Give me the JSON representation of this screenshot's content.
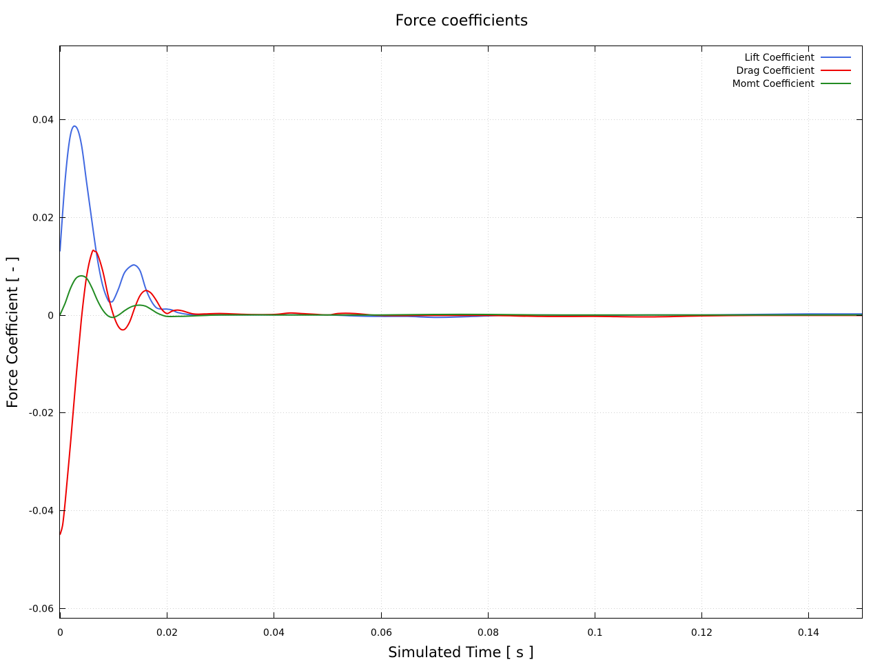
{
  "chart_data": {
    "type": "line",
    "title": "Force coefficients",
    "xlabel": "Simulated Time [ s ]",
    "ylabel": "Force Coefficient [ - ]",
    "xlim": [
      0,
      0.15
    ],
    "ylim": [
      -0.062,
      0.055
    ],
    "xticks": [
      0,
      0.02,
      0.04,
      0.06,
      0.08,
      0.1,
      0.12,
      0.14
    ],
    "xtick_labels": [
      "0",
      "0.02",
      "0.04",
      "0.06",
      "0.08",
      "0.1",
      "0.12",
      "0.14"
    ],
    "yticks": [
      -0.06,
      -0.04,
      -0.02,
      0,
      0.02,
      0.04
    ],
    "ytick_labels": [
      "-0.06",
      "-0.04",
      "-0.02",
      "0",
      "0.02",
      "0.04"
    ],
    "grid": true,
    "legend": "top-right",
    "series": [
      {
        "name": "Lift Coefficient",
        "color": "#4169e1",
        "x": [
          0,
          0.001,
          0.002,
          0.003,
          0.004,
          0.005,
          0.006,
          0.007,
          0.008,
          0.009,
          0.0095,
          0.01,
          0.011,
          0.012,
          0.013,
          0.014,
          0.015,
          0.016,
          0.017,
          0.018,
          0.019,
          0.02,
          0.021,
          0.022,
          0.024,
          0.026,
          0.03,
          0.04,
          0.05,
          0.055,
          0.06,
          0.065,
          0.07,
          0.075,
          0.08,
          0.09,
          0.1,
          0.11,
          0.12,
          0.13,
          0.14,
          0.15
        ],
        "y": [
          0.013,
          0.028,
          0.037,
          0.0385,
          0.035,
          0.027,
          0.019,
          0.0115,
          0.006,
          0.003,
          0.0027,
          0.003,
          0.0055,
          0.0085,
          0.0098,
          0.0102,
          0.009,
          0.0055,
          0.003,
          0.0015,
          0.0012,
          0.0012,
          0.001,
          0.0005,
          0.0001,
          0,
          0,
          0,
          0,
          -0.0002,
          -0.0003,
          -0.0003,
          -0.0005,
          -0.0004,
          -0.0002,
          0,
          -0.0001,
          0,
          0,
          0.0001,
          0.0002,
          0.0002
        ]
      },
      {
        "name": "Drag Coefficient",
        "color": "#ee0000",
        "x": [
          0,
          0.0005,
          0.001,
          0.002,
          0.003,
          0.004,
          0.005,
          0.006,
          0.0065,
          0.007,
          0.008,
          0.009,
          0.01,
          0.011,
          0.012,
          0.013,
          0.014,
          0.015,
          0.016,
          0.017,
          0.018,
          0.019,
          0.02,
          0.021,
          0.022,
          0.023,
          0.025,
          0.027,
          0.03,
          0.035,
          0.04,
          0.043,
          0.045,
          0.05,
          0.052,
          0.055,
          0.06,
          0.07,
          0.08,
          0.09,
          0.1,
          0.11,
          0.12,
          0.13,
          0.14,
          0.15
        ],
        "y": [
          -0.045,
          -0.043,
          -0.038,
          -0.026,
          -0.013,
          -0.001,
          0.008,
          0.0128,
          0.013,
          0.0125,
          0.009,
          0.004,
          0,
          -0.0025,
          -0.003,
          -0.0015,
          0.0015,
          0.004,
          0.005,
          0.0045,
          0.003,
          0.0012,
          0.0003,
          0.0008,
          0.001,
          0.0008,
          0.0002,
          0.0002,
          0.0003,
          0.0001,
          0.0001,
          0.0004,
          0.0003,
          0,
          0.0003,
          0.0003,
          -0.0001,
          -0.0001,
          -0.0001,
          -0.0003,
          -0.0003,
          -0.0004,
          -0.0002,
          -0.0001,
          -0.0001,
          -0.0001
        ]
      },
      {
        "name": "Momt Coefficient",
        "color": "#228b22",
        "x": [
          0,
          0.001,
          0.002,
          0.003,
          0.004,
          0.005,
          0.006,
          0.007,
          0.008,
          0.009,
          0.01,
          0.011,
          0.012,
          0.013,
          0.014,
          0.015,
          0.016,
          0.017,
          0.018,
          0.019,
          0.02,
          0.022,
          0.025,
          0.03,
          0.04,
          0.05,
          0.06,
          0.07,
          0.08,
          0.09,
          0.1,
          0.11,
          0.12,
          0.13,
          0.14,
          0.15
        ],
        "y": [
          0,
          0.0025,
          0.0055,
          0.0075,
          0.008,
          0.0075,
          0.0055,
          0.003,
          0.001,
          -0.0002,
          -0.0005,
          0,
          0.0008,
          0.0015,
          0.0019,
          0.002,
          0.0018,
          0.0012,
          0.0005,
          0,
          -0.0003,
          -0.0003,
          -0.0002,
          0,
          0,
          0,
          0,
          0.0001,
          0.0001,
          0,
          0,
          0,
          0,
          0,
          0,
          0
        ]
      }
    ]
  }
}
